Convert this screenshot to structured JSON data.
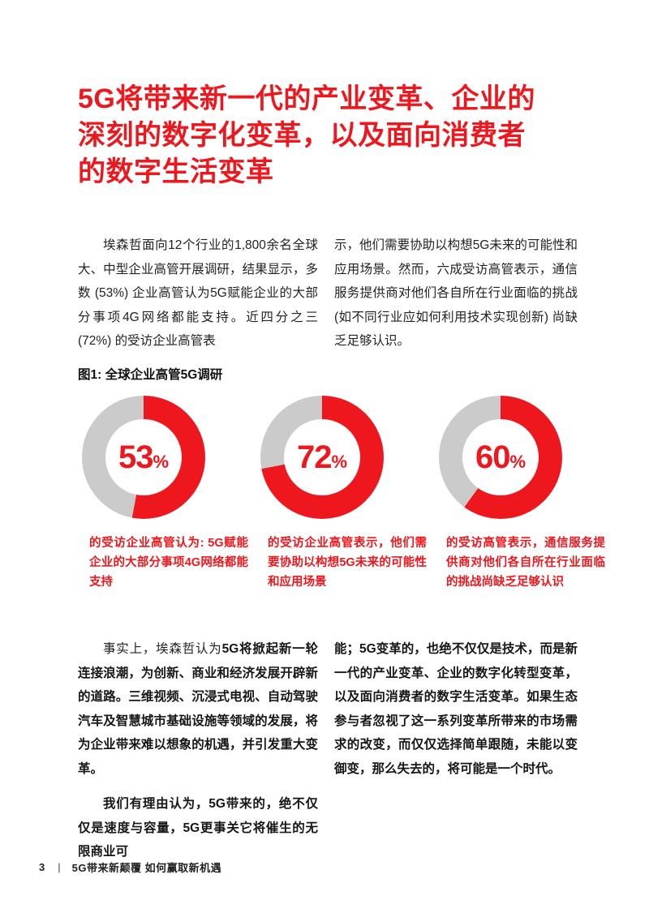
{
  "page": {
    "heading_lines": [
      "5G将带来新一代的产业变革、企业的",
      "深刻的数字化变革，以及面向消费者",
      "的数字生活变革"
    ],
    "accent_color": "#ED171D"
  },
  "intro": {
    "left": "埃森哲面向12个行业的1,800余名全球大、中型企业高管开展调研，结果显示，多数 (53%) 企业高管认为5G赋能企业的大部分事项4G网络都能支持。近四分之三 (72%) 的受访企业高管表",
    "right": "示，他们需要协助以构想5G未来的可能性和应用场景。然而，六成受访高管表示，通信服务提供商对他们各自所在行业面临的挑战 (如不同行业应如何利用技术实现创新) 尚缺乏足够认识。"
  },
  "chart_data": {
    "type": "pie",
    "variant": "donut",
    "title": "图1: 全球企业高管5G调研",
    "start_angle_deg": 0,
    "direction": "clockwise",
    "legend_position": "none",
    "colors": {
      "filled": "#ED171D",
      "remainder": "#CBCBCB"
    },
    "charts": [
      {
        "value": 53,
        "display": "53",
        "unit": "%",
        "caption": "的受访企业高管认为: 5G赋能企业的大部分事项4G网络都能支持"
      },
      {
        "value": 72,
        "display": "72",
        "unit": "%",
        "caption": "的受访企业高管表示，他们需要协助以构想5G未来的可能性和应用场景"
      },
      {
        "value": 60,
        "display": "60",
        "unit": "%",
        "caption": "的受访高管表示，通信服务提供商对他们各自所在行业面临的挑战尚缺乏足够认识"
      }
    ]
  },
  "body": {
    "left_p1_regular": "事实上，埃森哲认为",
    "left_p1_bold": "5G将掀起新一轮连接浪潮，为创新、商业和经济发展开辟新的道路。三维视频、沉浸式电视、自动驾驶汽车及智慧城市基础设施等领域的发展，将为企业带来难以想象的机遇，并引发重大变革。",
    "left_p2_bold": "我们有理由认为，5G带来的，绝不仅仅是速度与容量，5G更事关它将催生的无限商业可",
    "right_p1_bold": "能；5G变革的，也绝不仅仅是技术，而是新一代的产业变革、企业的数字化转型变革，以及面向消费者的数字生活变革。如果生态参与者忽视了这一系列变革所带来的市场需求的改变，而仅仅选择简单跟随，未能以变御变，那么失去的，将可能是一个时代。"
  },
  "footer": {
    "page_number": "3",
    "separator": "|",
    "doc_title": "5G带来新颠覆 如何赢取新机遇"
  }
}
